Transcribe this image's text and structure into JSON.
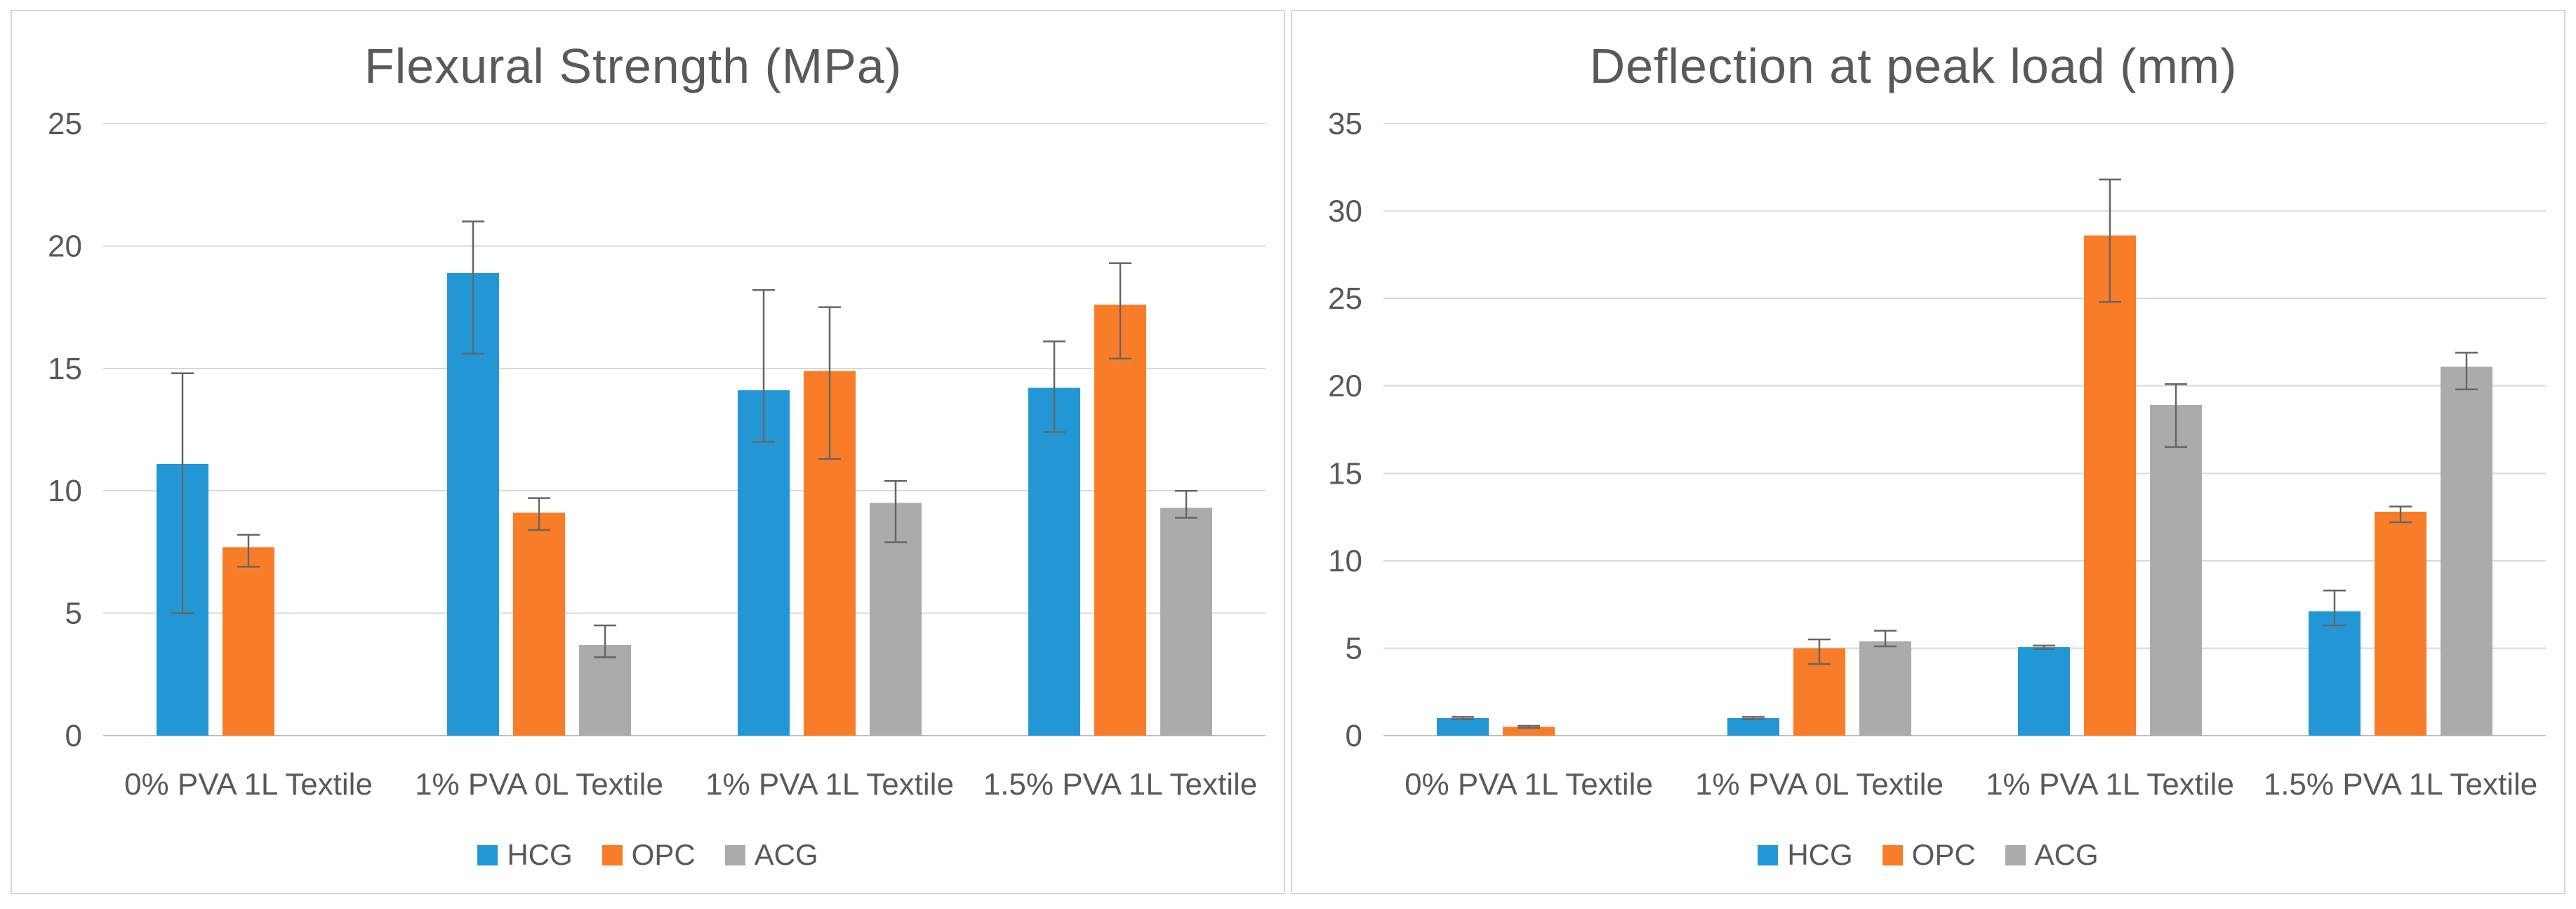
{
  "colors": {
    "series_blue": "#2397D5",
    "series_orange": "#F97D29",
    "series_gray": "#ABABAB",
    "grid": "#D9D9D9",
    "axis": "#BFBFBF",
    "error_bar": "#666666",
    "text": "#595959",
    "panel_border": "#D5D5D5",
    "background": "#FFFFFF"
  },
  "legend": {
    "items": [
      "HCG",
      "OPC",
      "ACG"
    ]
  },
  "chart_data": [
    {
      "type": "bar",
      "title": "Flexural Strength (MPa)",
      "xlabel": "",
      "ylabel": "",
      "ylim": [
        0,
        25
      ],
      "yticks": [
        0,
        5,
        10,
        15,
        20,
        25
      ],
      "grid": true,
      "legend_position": "bottom",
      "categories": [
        "0% PVA 1L Textile",
        "1% PVA 0L Textile",
        "1% PVA 1L Textile",
        "1.5% PVA 1L Textile"
      ],
      "series": [
        {
          "name": "HCG",
          "color_key": "series_blue",
          "values": [
            11.1,
            18.9,
            14.1,
            14.2
          ],
          "error_low": [
            5.0,
            15.6,
            12.0,
            12.4
          ],
          "error_high": [
            14.8,
            21.0,
            18.2,
            16.1
          ]
        },
        {
          "name": "OPC",
          "color_key": "series_orange",
          "values": [
            7.7,
            9.1,
            14.9,
            17.6
          ],
          "error_low": [
            6.9,
            8.4,
            11.3,
            15.4
          ],
          "error_high": [
            8.2,
            9.7,
            17.5,
            19.3
          ]
        },
        {
          "name": "ACG",
          "color_key": "series_gray",
          "values": [
            null,
            3.7,
            9.5,
            9.3
          ],
          "error_low": [
            null,
            3.2,
            7.9,
            8.9
          ],
          "error_high": [
            null,
            4.5,
            10.4,
            10.0
          ]
        }
      ]
    },
    {
      "type": "bar",
      "title": "Deflection at peak load (mm)",
      "xlabel": "",
      "ylabel": "",
      "ylim": [
        0,
        35
      ],
      "yticks": [
        0,
        5,
        10,
        15,
        20,
        25,
        30,
        35
      ],
      "grid": true,
      "legend_position": "bottom",
      "categories": [
        "0% PVA 1L Textile",
        "1% PVA 0L Textile",
        "1% PVA 1L Textile",
        "1.5% PVA 1L Textile"
      ],
      "series": [
        {
          "name": "HCG",
          "color_key": "series_blue",
          "values": [
            1.0,
            1.0,
            5.05,
            7.1
          ],
          "error_low": [
            0.93,
            0.93,
            4.95,
            6.3
          ],
          "error_high": [
            1.07,
            1.07,
            5.15,
            8.3
          ]
        },
        {
          "name": "OPC",
          "color_key": "series_orange",
          "values": [
            0.5,
            5.0,
            28.6,
            12.8
          ],
          "error_low": [
            0.44,
            4.1,
            24.8,
            12.2
          ],
          "error_high": [
            0.56,
            5.5,
            31.8,
            13.1
          ]
        },
        {
          "name": "ACG",
          "color_key": "series_gray",
          "values": [
            null,
            5.4,
            18.9,
            21.1
          ],
          "error_low": [
            null,
            5.1,
            16.5,
            19.8
          ],
          "error_high": [
            null,
            6.0,
            20.1,
            21.9
          ]
        }
      ]
    }
  ]
}
